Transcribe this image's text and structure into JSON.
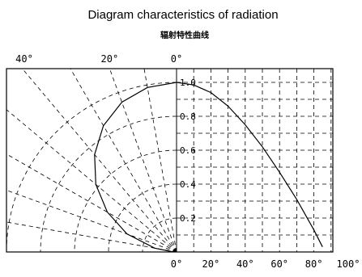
{
  "chart_data": {
    "type": "line",
    "subtype": "polar-radiation-pattern",
    "title": "Diagram characteristics of radiation",
    "subtitle": "辐射特性曲线",
    "angle_ticks_top": [
      "40°",
      "20°",
      "0°"
    ],
    "x_ticks": [
      "0°",
      "20°",
      "40°",
      "60°",
      "80°",
      "100°"
    ],
    "x_tick_values": [
      0,
      20,
      40,
      60,
      80,
      100
    ],
    "y_ticks": [
      "0.2",
      "0.4",
      "0.6",
      "0.8",
      "1.0"
    ],
    "y_tick_values": [
      0.2,
      0.4,
      0.6,
      0.8,
      1.0
    ],
    "polar_angles_deg": [
      0,
      10,
      20,
      30,
      40,
      50,
      60,
      70,
      80,
      90
    ],
    "grid": true,
    "series": [
      {
        "x": [
          0,
          10,
          20,
          30,
          40,
          50,
          60,
          70,
          80,
          85
        ],
        "y": [
          1.0,
          0.985,
          0.94,
          0.86,
          0.75,
          0.62,
          0.47,
          0.31,
          0.13,
          0.03
        ]
      }
    ],
    "xlim": [
      0,
      90
    ],
    "ylim": [
      0,
      1.0
    ]
  }
}
